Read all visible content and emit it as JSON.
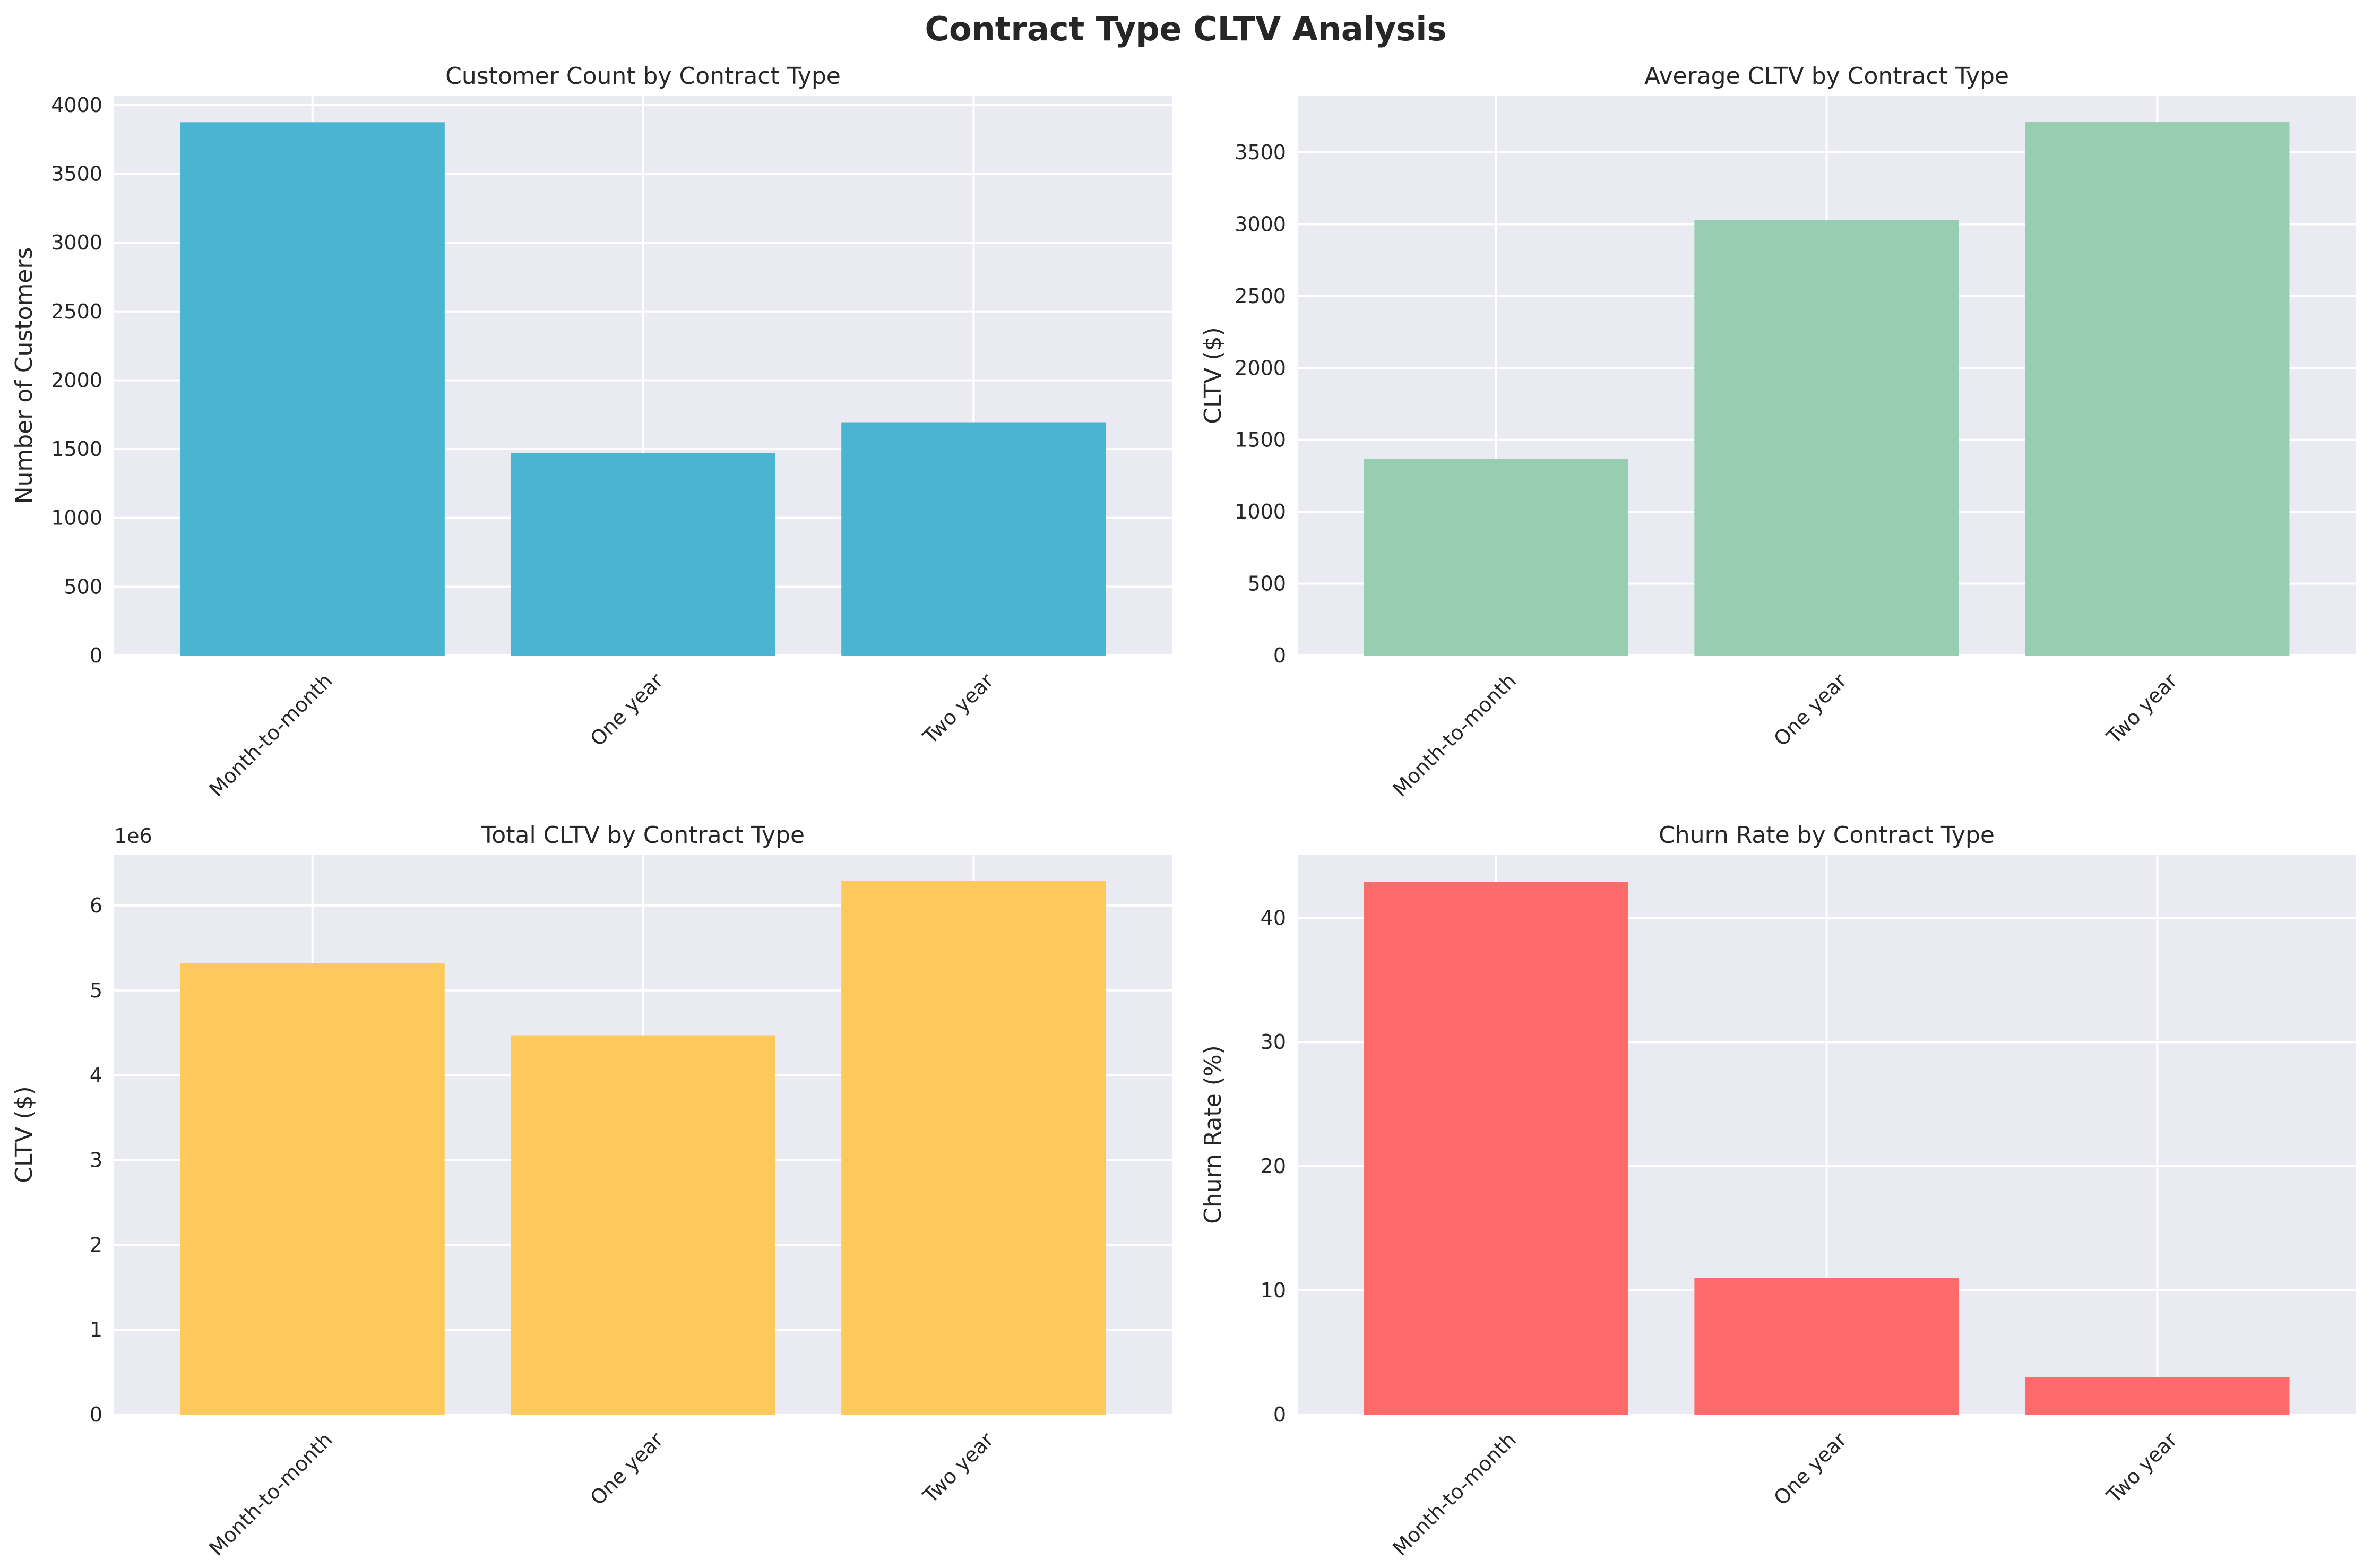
{
  "figure": {
    "title": "Contract Type CLTV Analysis"
  },
  "chart_data": [
    {
      "type": "bar",
      "title": "Customer Count by Contract Type",
      "xlabel": "",
      "ylabel": "Number of Customers",
      "categories": [
        "Month-to-month",
        "One year",
        "Two year"
      ],
      "values": [
        3875,
        1473,
        1695
      ],
      "ylim": [
        0,
        4069
      ],
      "yticks": [
        0,
        500,
        1000,
        1500,
        2000,
        2500,
        3000,
        3500,
        4000
      ],
      "ytick_labels": [
        "0",
        "500",
        "1000",
        "1500",
        "2000",
        "2500",
        "3000",
        "3500",
        "4000"
      ],
      "offset_label": "",
      "grid": true,
      "color": "#4ab5d0"
    },
    {
      "type": "bar",
      "title": "Average CLTV by Contract Type",
      "xlabel": "",
      "ylabel": "CLTV ($)",
      "categories": [
        "Month-to-month",
        "One year",
        "Two year"
      ],
      "values": [
        1370,
        3030,
        3710
      ],
      "ylim": [
        0,
        3895
      ],
      "yticks": [
        0,
        500,
        1000,
        1500,
        2000,
        2500,
        3000,
        3500
      ],
      "ytick_labels": [
        "0",
        "500",
        "1000",
        "1500",
        "2000",
        "2500",
        "3000",
        "3500"
      ],
      "offset_label": "",
      "grid": true,
      "color": "#97cdb1"
    },
    {
      "type": "bar",
      "title": "Total CLTV by Contract Type",
      "xlabel": "",
      "ylabel": "CLTV ($)",
      "categories": [
        "Month-to-month",
        "One year",
        "Two year"
      ],
      "values": [
        5.32,
        4.47,
        6.29
      ],
      "ylim": [
        0,
        6.6
      ],
      "yticks": [
        0,
        1,
        2,
        3,
        4,
        5,
        6
      ],
      "ytick_labels": [
        "0",
        "1",
        "2",
        "3",
        "4",
        "5",
        "6"
      ],
      "offset_label": "1e6",
      "grid": true,
      "color": "#fdc95a"
    },
    {
      "type": "bar",
      "title": "Churn Rate by Contract Type",
      "xlabel": "",
      "ylabel": "Churn Rate (%)",
      "categories": [
        "Month-to-month",
        "One year",
        "Two year"
      ],
      "values": [
        42.9,
        11.0,
        3.0
      ],
      "ylim": [
        0,
        45.1
      ],
      "yticks": [
        0,
        10,
        20,
        30,
        40
      ],
      "ytick_labels": [
        "0",
        "10",
        "20",
        "30",
        "40"
      ],
      "offset_label": "",
      "grid": true,
      "color": "#ff6b6b"
    }
  ]
}
